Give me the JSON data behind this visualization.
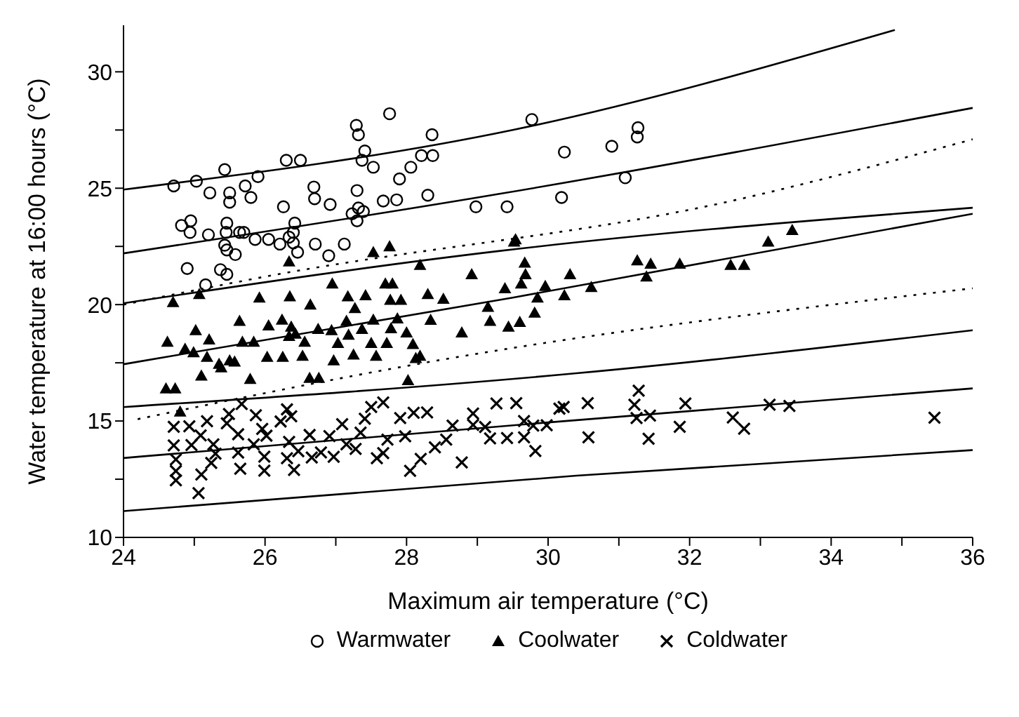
{
  "chart_data": {
    "type": "scatter",
    "xlabel": "Maximum air temperature (°C)",
    "ylabel": "Water temperature at 16:00 hours (°C)",
    "xlim": [
      24,
      36
    ],
    "xticks": [
      24,
      {
        "value": 25,
        "label": null
      },
      26,
      {
        "value": 27,
        "label": null
      },
      28,
      {
        "value": 29,
        "label": null
      },
      30,
      {
        "value": 31,
        "label": null
      },
      32,
      {
        "value": 33,
        "label": null
      },
      34,
      {
        "value": 35,
        "label": null
      },
      36
    ],
    "ylim": [
      10,
      32
    ],
    "yticks": [
      10,
      {
        "value": 12.5,
        "label": null
      },
      15,
      {
        "value": 17.5,
        "label": null
      },
      20,
      {
        "value": 22.5,
        "label": null
      },
      25,
      {
        "value": 27.5,
        "label": null
      },
      30
    ],
    "legend": "bottom",
    "series": [
      {
        "name": "Warmwater",
        "marker": "circle",
        "color": "#000000",
        "x": [
          24.71,
          25.03,
          25.22,
          25.43,
          25.5,
          25.5,
          25.72,
          25.8,
          25.9,
          26.3,
          26.5,
          26.26,
          26.69,
          26.7,
          26.92,
          27.29,
          27.32,
          27.41,
          27.3,
          27.32,
          27.3,
          27.37,
          27.53,
          27.67,
          27.86,
          27.76,
          27.9,
          28.06,
          28.21,
          28.37,
          28.36,
          28.3,
          24.82,
          24.95,
          24.94,
          25.2,
          25.45,
          25.46,
          25.64,
          25.7,
          25.43,
          25.46,
          25.58,
          25.86,
          26.05,
          26.21,
          26.34,
          26.4,
          26.42,
          26.4,
          26.46,
          26.71,
          26.9,
          27.12,
          27.23,
          27.39,
          24.9,
          25.16,
          25.37,
          25.46,
          28.98,
          29.42,
          29.77,
          30.23,
          30.9,
          31.27,
          31.26,
          30.19,
          31.09
        ],
        "values": [
          25.1,
          25.3,
          24.8,
          25.8,
          24.8,
          24.4,
          25.1,
          24.6,
          25.5,
          26.2,
          26.2,
          24.2,
          25.05,
          24.55,
          24.3,
          27.7,
          27.3,
          26.6,
          24.9,
          24.15,
          23.6,
          26.2,
          25.9,
          24.45,
          24.5,
          28.2,
          25.4,
          25.9,
          26.4,
          26.4,
          27.3,
          24.7,
          23.4,
          23.6,
          23.1,
          23.0,
          23.1,
          23.5,
          23.1,
          23.1,
          22.55,
          22.35,
          22.15,
          22.8,
          22.8,
          22.6,
          22.9,
          23.1,
          23.5,
          22.65,
          22.25,
          22.6,
          22.1,
          22.6,
          23.9,
          24.0,
          21.55,
          20.85,
          21.5,
          21.3,
          24.2,
          24.2,
          27.95,
          26.55,
          26.8,
          27.6,
          27.2,
          24.6,
          25.45
        ]
      },
      {
        "name": "Coolwater",
        "marker": "triangle",
        "color": "#000000",
        "x": [
          24.7,
          25.07,
          25.92,
          26.35,
          26.64,
          26.95,
          27.17,
          27.42,
          27.7,
          27.8,
          27.77,
          27.92,
          28.3,
          28.52,
          28.92,
          29.39,
          28.19,
          27.53,
          27.76,
          26.34,
          24.62,
          24.87,
          25.02,
          25.21,
          24.99,
          25.18,
          25.38,
          25.5,
          25.64,
          25.68,
          25.84,
          26.05,
          26.24,
          26.37,
          26.34,
          26.43,
          26.56,
          26.75,
          26.94,
          27.03,
          27.15,
          27.18,
          27.27,
          27.37,
          27.5,
          27.53,
          27.72,
          27.78,
          27.87,
          28.0,
          28.09,
          28.13,
          28.34,
          28.19,
          28.78,
          29.15,
          29.18,
          29.44,
          29.52,
          24.6,
          24.73,
          25.1,
          25.35,
          25.57,
          25.79,
          26.03,
          26.25,
          26.53,
          26.63,
          26.76,
          26.97,
          27.25,
          27.57,
          28.02,
          29.54,
          29.67,
          29.68,
          29.62,
          29.96,
          29.85,
          30.31,
          30.23,
          30.61,
          29.81,
          29.6,
          31.26,
          31.45,
          31.39,
          31.86,
          32.58,
          32.77,
          33.11,
          33.45,
          24.8
        ],
        "values": [
          20.1,
          20.45,
          20.3,
          20.35,
          20.0,
          20.9,
          20.35,
          20.4,
          20.9,
          20.9,
          20.2,
          20.2,
          20.45,
          20.25,
          21.3,
          20.7,
          21.7,
          22.25,
          22.5,
          21.85,
          18.4,
          18.1,
          18.9,
          18.5,
          17.95,
          17.75,
          17.3,
          17.6,
          19.3,
          18.4,
          18.4,
          19.1,
          19.35,
          19.05,
          18.65,
          18.75,
          18.4,
          18.95,
          18.9,
          18.35,
          19.3,
          18.7,
          19.85,
          18.95,
          18.35,
          19.35,
          18.35,
          18.98,
          19.4,
          18.8,
          18.3,
          17.7,
          19.34,
          17.8,
          18.8,
          19.9,
          19.3,
          19.05,
          22.7,
          16.4,
          16.4,
          16.95,
          17.45,
          17.55,
          16.8,
          17.75,
          17.75,
          17.8,
          16.85,
          16.85,
          17.6,
          17.85,
          17.8,
          16.75,
          22.8,
          21.8,
          21.3,
          20.9,
          20.8,
          20.3,
          21.3,
          20.4,
          20.75,
          19.65,
          19.25,
          21.9,
          21.75,
          21.2,
          21.75,
          21.7,
          21.7,
          22.7,
          23.2,
          15.4
        ]
      },
      {
        "name": "Coldwater",
        "marker": "cross",
        "color": "#000000",
        "x": [
          24.71,
          24.71,
          24.74,
          24.74,
          24.74,
          24.93,
          24.96,
          25.09,
          25.06,
          25.1,
          25.18,
          25.27,
          25.24,
          25.3,
          25.46,
          25.49,
          25.62,
          25.62,
          25.65,
          25.67,
          25.84,
          25.87,
          25.96,
          25.99,
          25.99,
          26.02,
          26.22,
          26.31,
          26.37,
          26.34,
          26.31,
          26.41,
          26.47,
          26.63,
          26.66,
          26.79,
          26.91,
          26.97,
          27.09,
          27.15,
          27.28,
          27.35,
          27.41,
          27.5,
          27.67,
          27.58,
          27.73,
          27.67,
          27.91,
          27.98,
          28.1,
          28.29,
          28.05,
          28.2,
          28.4,
          28.56,
          28.65,
          28.78,
          28.94,
          28.94,
          29.11,
          29.18,
          29.27,
          29.42,
          29.55,
          29.66,
          29.79,
          29.66,
          29.82,
          29.98,
          30.16,
          30.22,
          30.56,
          30.57,
          31.28,
          31.22,
          31.25,
          31.44,
          31.42,
          31.94,
          31.86,
          32.61,
          32.77,
          33.13,
          33.41,
          35.46
        ],
        "values": [
          14.75,
          13.95,
          13.35,
          12.85,
          12.45,
          14.77,
          13.97,
          14.38,
          11.9,
          12.7,
          14.99,
          14.0,
          13.2,
          13.6,
          14.9,
          15.3,
          14.43,
          13.64,
          12.95,
          15.73,
          14.0,
          15.25,
          14.66,
          13.47,
          12.87,
          14.37,
          14.98,
          15.5,
          15.2,
          14.1,
          13.4,
          12.9,
          13.7,
          14.4,
          13.43,
          13.65,
          14.35,
          13.46,
          14.86,
          14.0,
          13.8,
          14.5,
          15.1,
          15.6,
          15.8,
          13.4,
          14.2,
          13.62,
          15.13,
          14.34,
          15.35,
          15.37,
          12.86,
          13.37,
          13.87,
          14.2,
          14.8,
          13.22,
          15.32,
          14.83,
          14.74,
          14.25,
          15.75,
          14.27,
          15.77,
          15.0,
          14.8,
          14.3,
          13.71,
          14.82,
          15.53,
          15.6,
          15.77,
          14.3,
          16.3,
          15.7,
          15.13,
          15.23,
          14.24,
          15.75,
          14.75,
          15.15,
          14.67,
          15.7,
          15.65,
          15.14
        ]
      },
      {
        "type": "line",
        "marker": "none",
        "line_style": "solid",
        "color": "#000000",
        "x": [
          24,
          29.5,
          34.9
        ],
        "values": [
          24.94,
          27.5,
          31.8
        ]
      },
      {
        "type": "line",
        "marker": "none",
        "line_style": "solid",
        "color": "#000000",
        "x": [
          24,
          29.3,
          36
        ],
        "values": [
          22.2,
          24.75,
          28.45
        ]
      },
      {
        "type": "line",
        "marker": "none",
        "line_style": "solid",
        "color": "#000000",
        "x": [
          24,
          29.3,
          36
        ],
        "values": [
          20.06,
          22.3,
          24.16
        ]
      },
      {
        "type": "line",
        "marker": "none",
        "line_style": "dotted",
        "color": "#000000",
        "x": [
          24,
          26,
          32.6,
          36
        ],
        "values": [
          20.0,
          21.2,
          24.46,
          27.1
        ]
      },
      {
        "type": "line",
        "marker": "none",
        "line_style": "solid",
        "color": "#000000",
        "x": [
          24,
          29.5,
          36
        ],
        "values": [
          17.44,
          20.3,
          23.9
        ]
      },
      {
        "type": "line",
        "marker": "none",
        "line_style": "dotted",
        "color": "#000000",
        "x": [
          24.2,
          28.57,
          36
        ],
        "values": [
          15.08,
          17.67,
          20.7
        ]
      },
      {
        "type": "line",
        "marker": "none",
        "line_style": "solid",
        "color": "#000000",
        "x": [
          24,
          30.4,
          36
        ],
        "values": [
          15.6,
          17.05,
          18.9
        ]
      },
      {
        "type": "line",
        "marker": "none",
        "line_style": "solid",
        "color": "#000000",
        "x": [
          24,
          30,
          36
        ],
        "values": [
          13.41,
          14.94,
          16.4
        ]
      },
      {
        "type": "line",
        "marker": "none",
        "line_style": "solid",
        "color": "#000000",
        "x": [
          24,
          30.4,
          36
        ],
        "values": [
          11.13,
          12.65,
          13.75
        ]
      }
    ]
  }
}
